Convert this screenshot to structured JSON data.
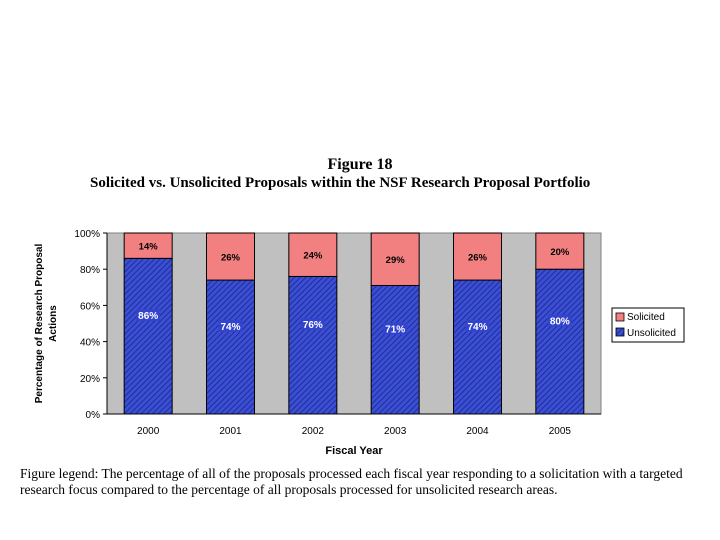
{
  "figure": {
    "title": "Figure 18",
    "subtitle": "Solicited vs. Unsolicited Proposals within the NSF Research Proposal Portfolio",
    "caption": "Figure legend:  The percentage of all of the proposals processed each fiscal year responding to a solicitation with a targeted research focus compared to the percentage of all proposals processed for unsolicited research areas."
  },
  "colors": {
    "solicited": "#f28080",
    "unsolicited": "#3344cc",
    "plot_bg": "#c0c0c0"
  },
  "chart_data": {
    "type": "bar",
    "stacked": true,
    "categories": [
      "2000",
      "2001",
      "2002",
      "2003",
      "2004",
      "2005"
    ],
    "series": [
      {
        "name": "Unsolicited",
        "values": [
          86,
          74,
          76,
          71,
          74,
          80
        ],
        "labels": [
          "86%",
          "74%",
          "76%",
          "71%",
          "74%",
          "80%"
        ]
      },
      {
        "name": "Solicited",
        "values": [
          14,
          26,
          24,
          29,
          26,
          20
        ],
        "labels": [
          "14%",
          "26%",
          "24%",
          "29%",
          "26%",
          "20%"
        ]
      }
    ],
    "xlabel": "Fiscal Year",
    "ylabel": "Percentage of Research Proposal Actions",
    "ylabel_lines": [
      "Percentage of Research Proposal",
      "Actions"
    ],
    "ylim": [
      0,
      100
    ],
    "yticks": [
      0,
      20,
      40,
      60,
      80,
      100
    ],
    "ytick_labels": [
      "0%",
      "20%",
      "40%",
      "60%",
      "80%",
      "100%"
    ],
    "legend": [
      "Solicited",
      "Unsolicited"
    ],
    "legend_position": "right",
    "grid": false
  }
}
